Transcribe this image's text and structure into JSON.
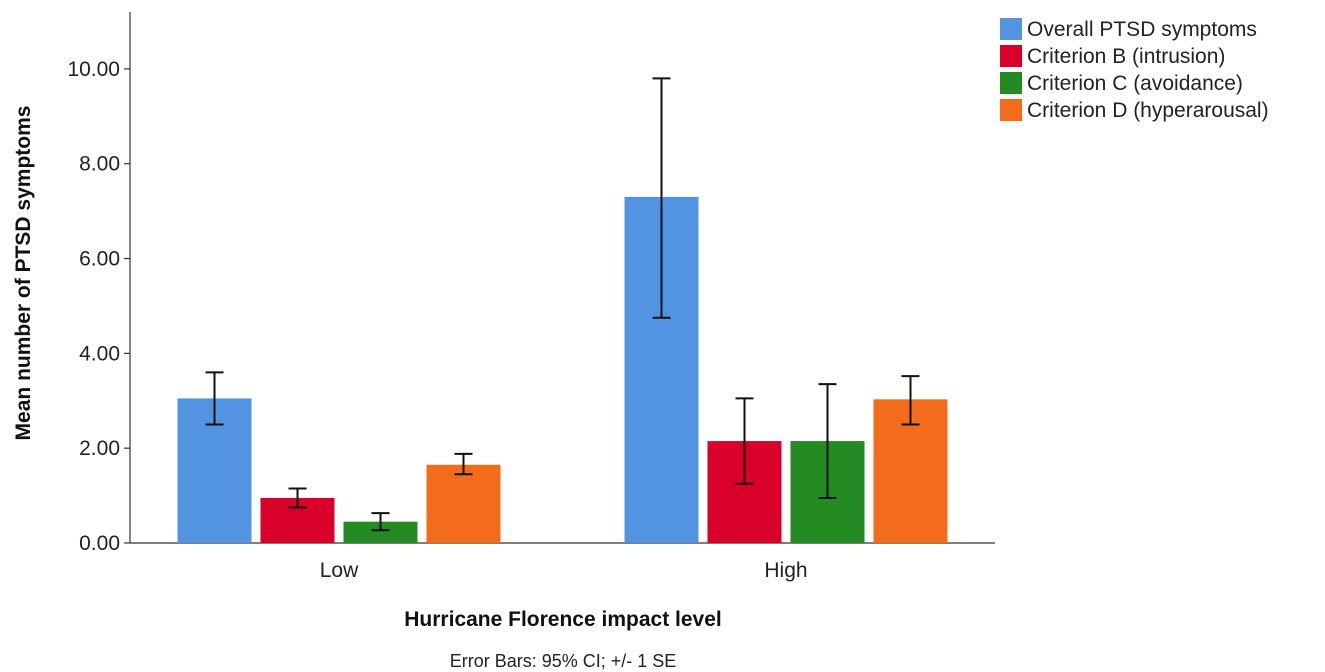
{
  "chart_data": {
    "type": "bar",
    "categories": [
      "Low",
      "High"
    ],
    "xlabel": "Hurricane Florence impact level",
    "ylabel": "Mean number of PTSD symptoms",
    "footnote": "Error Bars: 95% CI; +/- 1 SE",
    "ylim": [
      0,
      11.2
    ],
    "yticks": [
      0,
      2,
      4,
      6,
      8,
      10
    ],
    "ytick_labels": [
      "0.00",
      "2.00",
      "4.00",
      "6.00",
      "8.00",
      "10.00"
    ],
    "grid": false,
    "legend_position": "top-right",
    "series": [
      {
        "name": "Overall PTSD symptoms",
        "color": "#5294e2",
        "values": [
          3.05,
          7.3
        ],
        "err_low": [
          2.5,
          4.75
        ],
        "err_high": [
          3.6,
          9.8
        ]
      },
      {
        "name": "Criterion B (intrusion)",
        "color": "#d9002a",
        "values": [
          0.95,
          2.15
        ],
        "err_low": [
          0.75,
          1.25
        ],
        "err_high": [
          1.15,
          3.05
        ]
      },
      {
        "name": "Criterion C (avoidance)",
        "color": "#248a22",
        "values": [
          0.45,
          2.15
        ],
        "err_low": [
          0.27,
          0.95
        ],
        "err_high": [
          0.63,
          3.35
        ]
      },
      {
        "name": "Criterion D (hyperarousal)",
        "color": "#f26c1b",
        "values": [
          1.65,
          3.03
        ],
        "err_low": [
          1.45,
          2.5
        ],
        "err_high": [
          1.88,
          3.52
        ]
      }
    ]
  }
}
